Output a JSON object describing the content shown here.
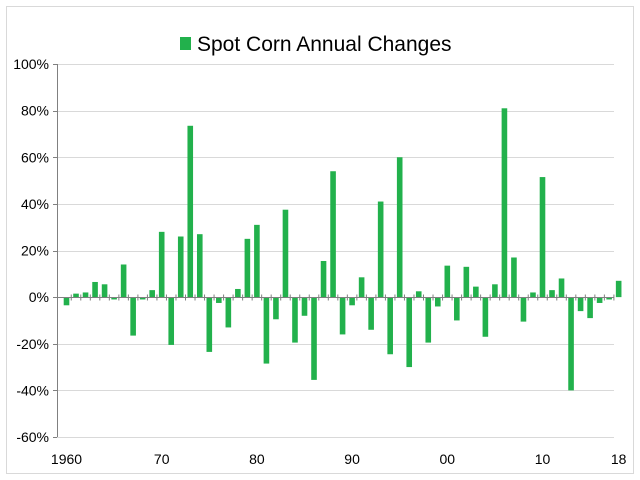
{
  "chart_data": {
    "type": "bar",
    "legend": {
      "label": "Spot Corn Annual Changes",
      "placement": "top"
    },
    "x": [
      1960,
      1961,
      1962,
      1963,
      1964,
      1965,
      1966,
      1967,
      1968,
      1969,
      1970,
      1971,
      1972,
      1973,
      1974,
      1975,
      1976,
      1977,
      1978,
      1979,
      1980,
      1981,
      1982,
      1983,
      1984,
      1985,
      1986,
      1987,
      1988,
      1989,
      1990,
      1991,
      1992,
      1993,
      1994,
      1995,
      1996,
      1997,
      1998,
      1999,
      2000,
      2001,
      2002,
      2003,
      2004,
      2005,
      2006,
      2007,
      2008,
      2009,
      2010,
      2011,
      2012,
      2013,
      2014,
      2015,
      2016,
      2017,
      2018
    ],
    "values": [
      -3.5,
      1.5,
      2,
      6.5,
      5.5,
      -1,
      14,
      -16.5,
      -1,
      3,
      28,
      -20.5,
      26,
      73.5,
      27,
      -23.5,
      -2.5,
      -13,
      3.5,
      25,
      31,
      -28.5,
      -9.5,
      37.5,
      -19.5,
      -8,
      -35.5,
      15.5,
      54,
      -16,
      -3.5,
      8.5,
      -14,
      41,
      -24.5,
      60,
      -30,
      2.5,
      -19.5,
      -4,
      13.5,
      -10,
      13,
      4.5,
      -17,
      5.5,
      81,
      17,
      -10.5,
      2,
      51.5,
      3,
      8,
      -40,
      -6,
      -9,
      -2.5,
      -1,
      7
    ],
    "x_tick_labels": [
      {
        "x": 1960,
        "label": "1960"
      },
      {
        "x": 1970,
        "label": "70"
      },
      {
        "x": 1980,
        "label": "80"
      },
      {
        "x": 1990,
        "label": "90"
      },
      {
        "x": 2000,
        "label": "00"
      },
      {
        "x": 2010,
        "label": "10"
      },
      {
        "x": 2018,
        "label": "18"
      }
    ],
    "y_ticks": [
      -60,
      -40,
      -20,
      0,
      20,
      40,
      60,
      80,
      100
    ],
    "y_tick_labels": [
      "-60%",
      "-40%",
      "-20%",
      "0%",
      "20%",
      "40%",
      "60%",
      "80%",
      "100%"
    ],
    "ylim": [
      -60,
      100
    ],
    "xlim": [
      1960,
      2018
    ],
    "grid": "horizontal",
    "bar_color": "#22b14c",
    "grid_color": "#d9d9d9",
    "axis_color": "#808080"
  }
}
